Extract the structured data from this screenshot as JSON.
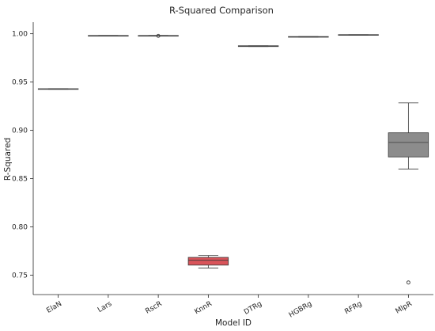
{
  "chart_data": {
    "type": "box",
    "title": "R-Squared Comparison",
    "xlabel": "Model ID",
    "ylabel": "R-Squared",
    "ylim": [
      0.73,
      1.012
    ],
    "yticks": [
      0.75,
      0.8,
      0.85,
      0.9,
      0.95,
      1.0
    ],
    "ytick_labels": [
      "0.75",
      "0.80",
      "0.85",
      "0.90",
      "0.95",
      "1.00"
    ],
    "grid": false,
    "categories": [
      "ElaN",
      "Lars",
      "RscR",
      "KnnR",
      "DTRg",
      "HGBRg",
      "RFRg",
      "MlpR"
    ],
    "boxes": [
      {
        "name": "ElaN",
        "min": 0.9425,
        "q1": 0.9425,
        "median": 0.9428,
        "q3": 0.9431,
        "max": 0.9431,
        "outliers": [],
        "color": "#e7e7e7"
      },
      {
        "name": "Lars",
        "min": 0.9978,
        "q1": 0.9978,
        "median": 0.998,
        "q3": 0.9982,
        "max": 0.9982,
        "outliers": [],
        "color": "#e7e7e7"
      },
      {
        "name": "RscR",
        "min": 0.9978,
        "q1": 0.9978,
        "median": 0.998,
        "q3": 0.9982,
        "max": 0.9982,
        "outliers": [
          0.9978
        ],
        "color": "#e7e7e7"
      },
      {
        "name": "KnnR",
        "min": 0.7575,
        "q1": 0.7605,
        "median": 0.7655,
        "q3": 0.7685,
        "max": 0.7705,
        "outliers": [],
        "color": "#d9545a"
      },
      {
        "name": "DTRg",
        "min": 0.9868,
        "q1": 0.9868,
        "median": 0.9872,
        "q3": 0.9876,
        "max": 0.9876,
        "outliers": [],
        "color": "#e7e7e7"
      },
      {
        "name": "HGBRg",
        "min": 0.9965,
        "q1": 0.9965,
        "median": 0.9968,
        "q3": 0.9971,
        "max": 0.9971,
        "outliers": [],
        "color": "#e7e7e7"
      },
      {
        "name": "RFRg",
        "min": 0.9985,
        "q1": 0.9985,
        "median": 0.9988,
        "q3": 0.9991,
        "max": 0.9991,
        "outliers": [],
        "color": "#e7e7e7"
      },
      {
        "name": "MlpR",
        "min": 0.86,
        "q1": 0.8725,
        "median": 0.8875,
        "q3": 0.8975,
        "max": 0.9285,
        "outliers": [
          0.7425
        ],
        "color": "#8c8c8c"
      }
    ]
  }
}
